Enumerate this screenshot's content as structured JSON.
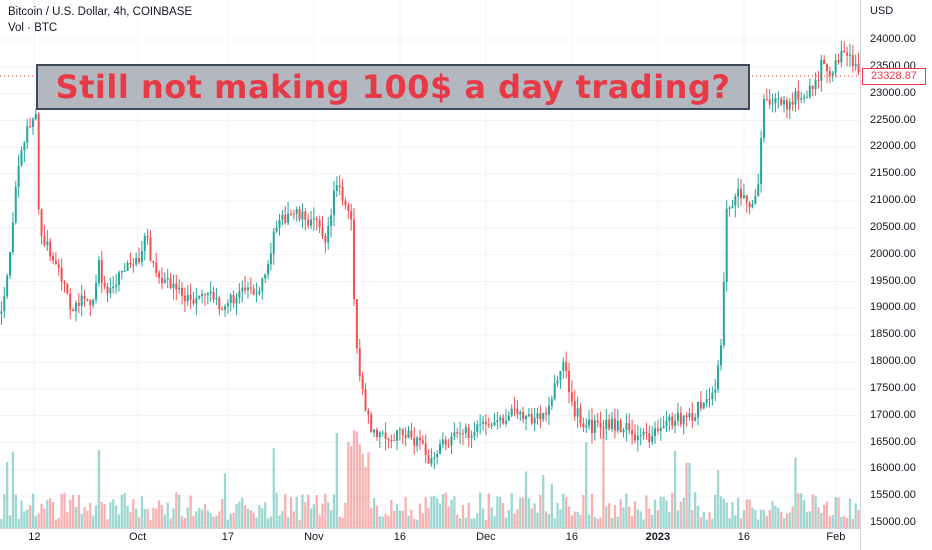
{
  "legend": {
    "symbol_line": "Bitcoin / U.S. Dollar, 4h, COINBASE",
    "volume_line": "Vol · BTC"
  },
  "banner": {
    "text": "Still not making 100$ a day trading?"
  },
  "price_axis": {
    "currency": "USD",
    "last_price": "23328.87"
  },
  "chart_data": {
    "type": "candlestick",
    "title": "Bitcoin / U.S. Dollar, 4h, COINBASE",
    "ylim": [
      15000,
      24400
    ],
    "y_ticks": [
      "24000.00",
      "23500.00",
      "23000.00",
      "22500.00",
      "22000.00",
      "21500.00",
      "21000.00",
      "20500.00",
      "20000.00",
      "19500.00",
      "19000.00",
      "18500.00",
      "18000.00",
      "17500.00",
      "17000.00",
      "16500.00",
      "16000.00",
      "15500.00",
      "15000.00"
    ],
    "x_ticks": [
      {
        "label": "12",
        "pos": 0.04,
        "bold": false
      },
      {
        "label": "Oct",
        "pos": 0.16,
        "bold": false
      },
      {
        "label": "17",
        "pos": 0.265,
        "bold": false
      },
      {
        "label": "Nov",
        "pos": 0.365,
        "bold": false
      },
      {
        "label": "16",
        "pos": 0.465,
        "bold": false
      },
      {
        "label": "Dec",
        "pos": 0.565,
        "bold": false
      },
      {
        "label": "16",
        "pos": 0.665,
        "bold": false
      },
      {
        "label": "2023",
        "pos": 0.765,
        "bold": true
      },
      {
        "label": "16",
        "pos": 0.865,
        "bold": false
      },
      {
        "label": "Feb",
        "pos": 0.972,
        "bold": false
      }
    ],
    "price_path": [
      [
        0.0,
        18900
      ],
      [
        0.01,
        19800
      ],
      [
        0.018,
        21200
      ],
      [
        0.03,
        22300
      ],
      [
        0.042,
        22600
      ],
      [
        0.046,
        20400
      ],
      [
        0.06,
        20000
      ],
      [
        0.075,
        19500
      ],
      [
        0.085,
        18900
      ],
      [
        0.095,
        19200
      ],
      [
        0.105,
        19000
      ],
      [
        0.115,
        19800
      ],
      [
        0.125,
        19200
      ],
      [
        0.135,
        19500
      ],
      [
        0.15,
        19800
      ],
      [
        0.16,
        19900
      ],
      [
        0.17,
        20300
      ],
      [
        0.18,
        19700
      ],
      [
        0.195,
        19500
      ],
      [
        0.21,
        19300
      ],
      [
        0.225,
        19100
      ],
      [
        0.24,
        19300
      ],
      [
        0.255,
        19000
      ],
      [
        0.27,
        19200
      ],
      [
        0.285,
        19300
      ],
      [
        0.3,
        19300
      ],
      [
        0.32,
        20400
      ],
      [
        0.335,
        20800
      ],
      [
        0.35,
        20700
      ],
      [
        0.365,
        20600
      ],
      [
        0.38,
        20300
      ],
      [
        0.39,
        21300
      ],
      [
        0.4,
        21000
      ],
      [
        0.408,
        20800
      ],
      [
        0.413,
        18500
      ],
      [
        0.42,
        17500
      ],
      [
        0.43,
        16800
      ],
      [
        0.44,
        16700
      ],
      [
        0.455,
        16600
      ],
      [
        0.47,
        16700
      ],
      [
        0.485,
        16500
      ],
      [
        0.5,
        16200
      ],
      [
        0.515,
        16500
      ],
      [
        0.53,
        16600
      ],
      [
        0.545,
        16700
      ],
      [
        0.56,
        16900
      ],
      [
        0.575,
        16900
      ],
      [
        0.59,
        17000
      ],
      [
        0.605,
        17100
      ],
      [
        0.62,
        16900
      ],
      [
        0.635,
        17100
      ],
      [
        0.645,
        17500
      ],
      [
        0.655,
        18000
      ],
      [
        0.665,
        17200
      ],
      [
        0.68,
        16800
      ],
      [
        0.695,
        16800
      ],
      [
        0.71,
        16850
      ],
      [
        0.725,
        16800
      ],
      [
        0.745,
        16600
      ],
      [
        0.76,
        16600
      ],
      [
        0.775,
        16900
      ],
      [
        0.79,
        16950
      ],
      [
        0.805,
        17000
      ],
      [
        0.82,
        17300
      ],
      [
        0.83,
        17400
      ],
      [
        0.838,
        18200
      ],
      [
        0.845,
        20800
      ],
      [
        0.855,
        21100
      ],
      [
        0.865,
        21200
      ],
      [
        0.875,
        20900
      ],
      [
        0.88,
        21000
      ],
      [
        0.887,
        22800
      ],
      [
        0.9,
        22900
      ],
      [
        0.915,
        22800
      ],
      [
        0.93,
        23000
      ],
      [
        0.945,
        23100
      ],
      [
        0.955,
        23500
      ],
      [
        0.965,
        23300
      ],
      [
        0.975,
        23600
      ],
      [
        0.985,
        23800
      ],
      [
        1.0,
        23329
      ]
    ]
  }
}
